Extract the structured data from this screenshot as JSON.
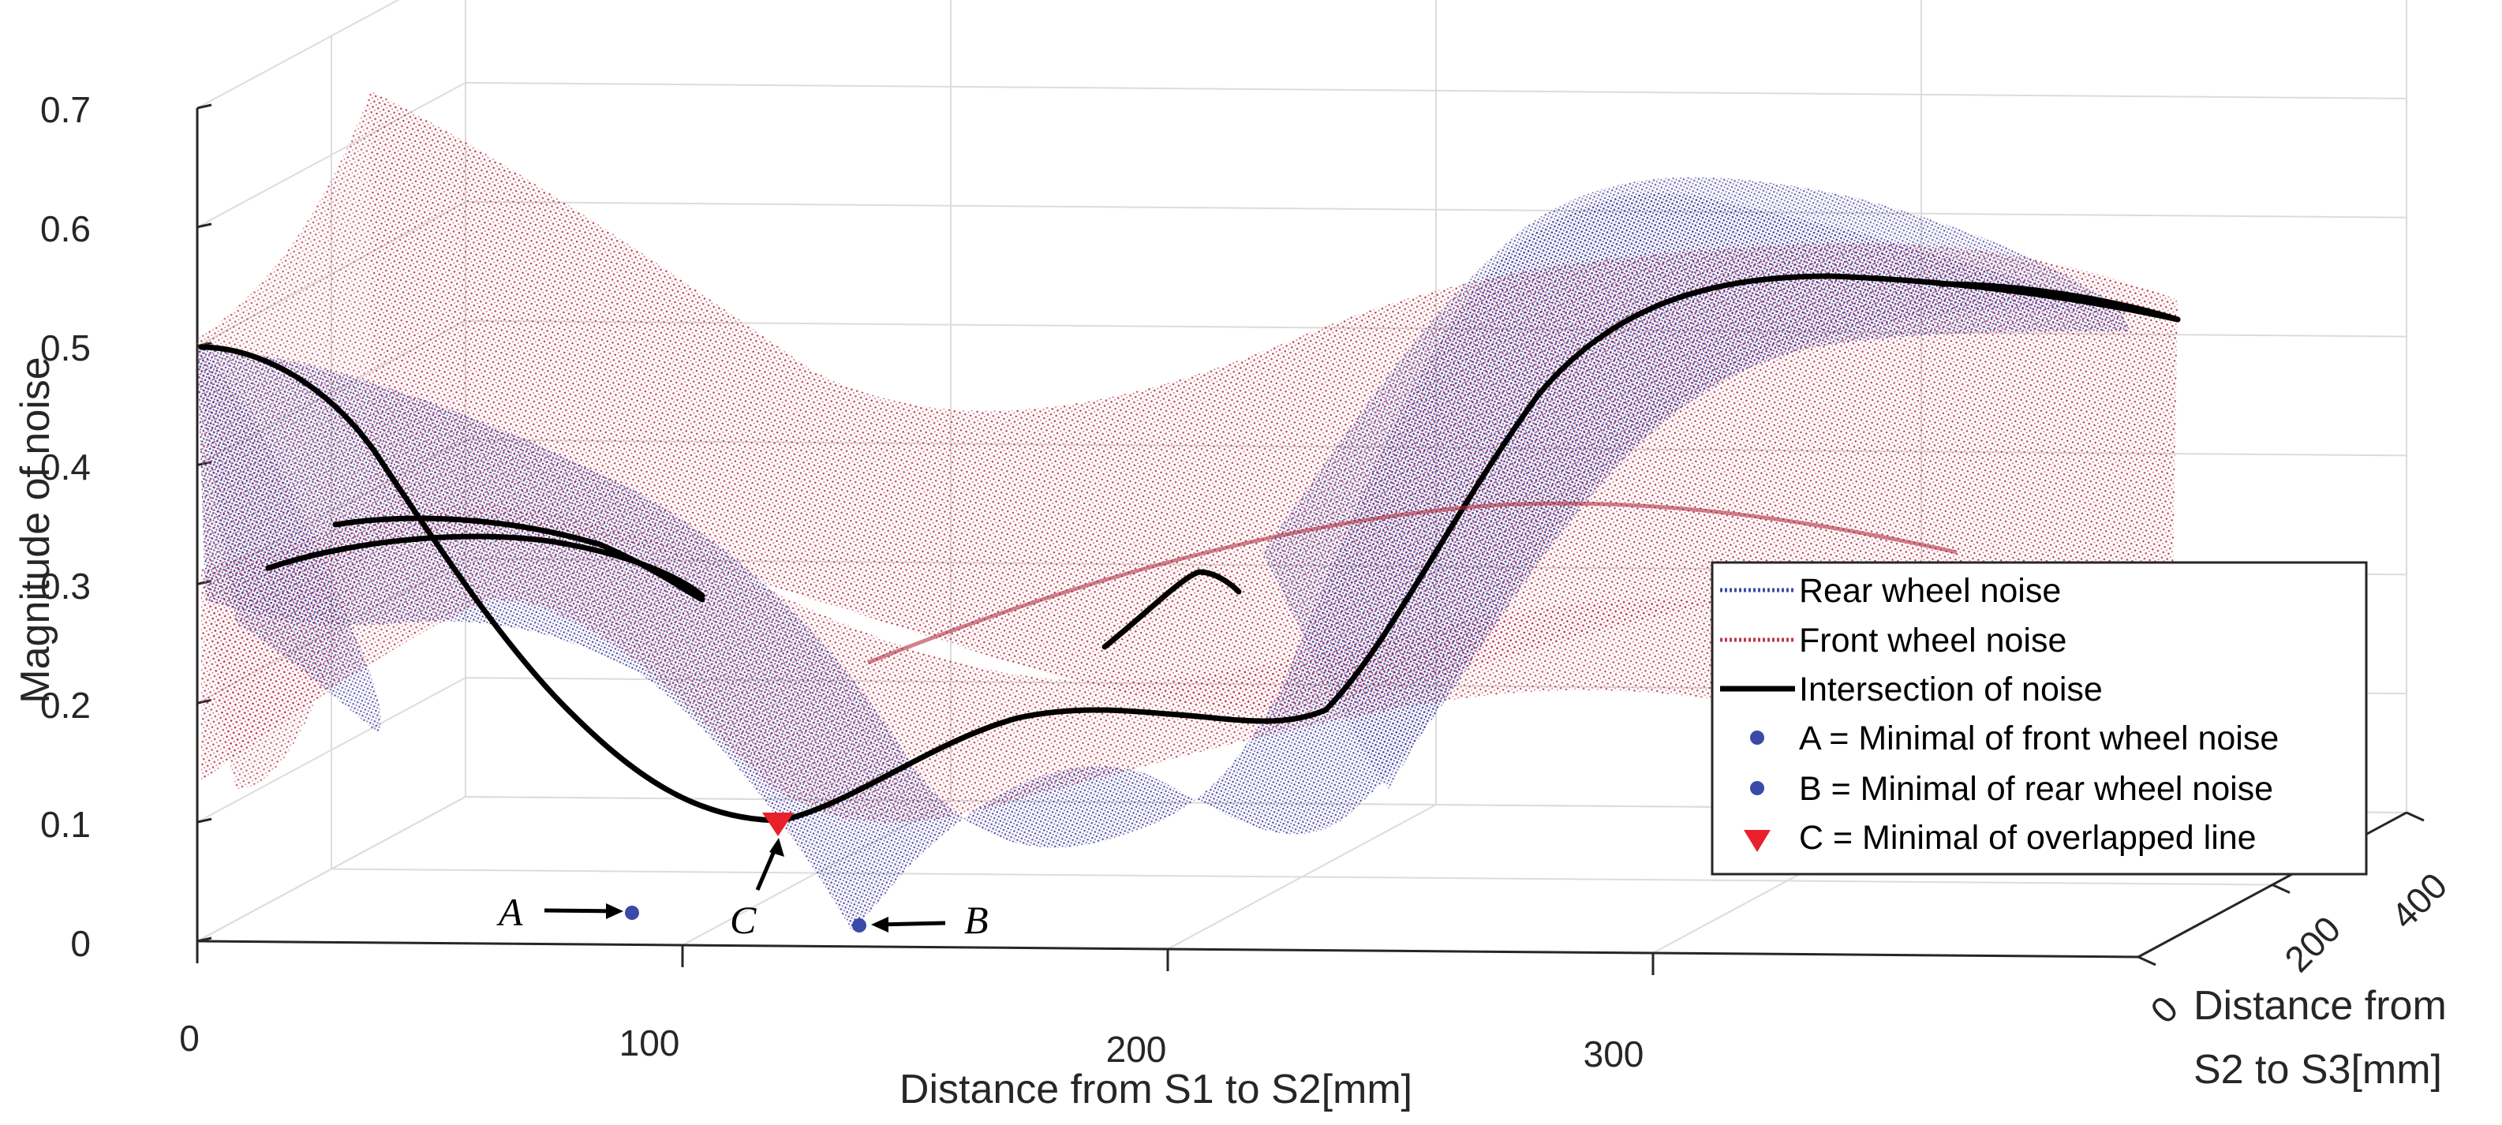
{
  "chart_data": {
    "type": "surface3d",
    "title": "",
    "xlabel": "Distance from S1 to S2[mm]",
    "ylabel_lines": [
      "Distance from",
      "S2 to S3[mm]"
    ],
    "zlabel": "Magnitude of noise",
    "x_ticks": [
      "0",
      "100",
      "200",
      "300"
    ],
    "y_ticks": [
      "0",
      "200",
      "400"
    ],
    "z_ticks": [
      "0",
      "0.1",
      "0.2",
      "0.3",
      "0.4",
      "0.5",
      "0.6",
      "0.7"
    ],
    "xlim": [
      0,
      400
    ],
    "ylim": [
      0,
      400
    ],
    "zlim": [
      0,
      0.7
    ],
    "grid": true,
    "legend_position": "lower-right",
    "colors": {
      "rear": "#3b4aa8",
      "front": "#c0354a",
      "intersection": "#000000",
      "marker_c": "#e8202a"
    },
    "series": [
      {
        "name": "Rear wheel noise",
        "kind": "dotted-surface",
        "color": "#3b4aa8"
      },
      {
        "name": "Front wheel noise",
        "kind": "dotted-surface",
        "color": "#c0354a"
      },
      {
        "name": "Intersection of noise",
        "kind": "line",
        "color": "#000000"
      },
      {
        "name": "A = Minimal of front wheel noise",
        "kind": "point",
        "color": "#3b4aa8",
        "x": 90,
        "y": 0,
        "z": 0.02
      },
      {
        "name": "B = Minimal of rear wheel noise",
        "kind": "point",
        "color": "#3b4aa8",
        "x": 137,
        "y": 0,
        "z": 0.01
      },
      {
        "name": "C = Minimal of overlapped line",
        "kind": "triangle",
        "color": "#e8202a",
        "x": 120,
        "y": 0,
        "z": 0.1
      }
    ],
    "annotations": [
      {
        "label": "A",
        "target": "A"
      },
      {
        "label": "B",
        "target": "B"
      },
      {
        "label": "C",
        "target": "C"
      }
    ]
  }
}
